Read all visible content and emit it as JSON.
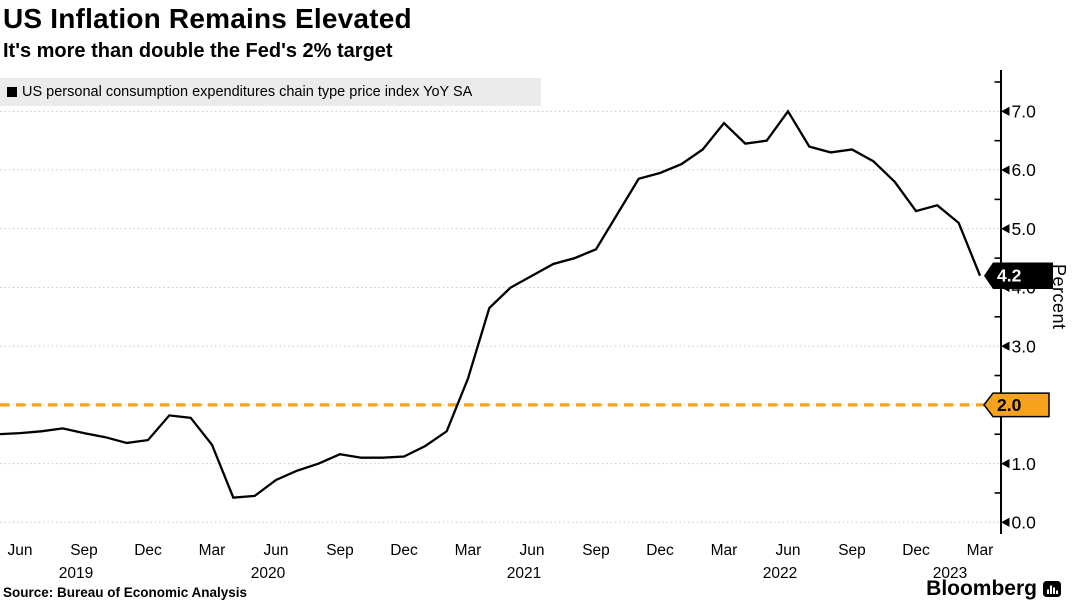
{
  "header": {
    "title": "US Inflation Remains Elevated",
    "subtitle": "It's more than double the Fed's 2% target"
  },
  "legend": {
    "marker": "black-square",
    "label": "US personal consumption expenditures chain type price index YoY SA"
  },
  "axis": {
    "y_label": "Percent",
    "y_tick_labels": [
      "0.0",
      "1.0",
      "2.0",
      "3.0",
      "4.0",
      "5.0",
      "6.0",
      "7.0"
    ]
  },
  "annotations": {
    "latest": {
      "label": "4.2",
      "value": 4.2,
      "bg_color": "#000000",
      "text_color": "#ffffff"
    },
    "target": {
      "label": "2.0",
      "value": 2.0,
      "bg_color": "#f7a21d",
      "text_color": "#000000"
    }
  },
  "footer": {
    "source": "Source: Bureau of Economic Analysis",
    "brand": "Bloomberg"
  },
  "colors": {
    "line": "#000000",
    "target_line": "#f7a21d",
    "grid": "#c9c9c9",
    "legend_bg": "#ebebeb"
  },
  "chart_data": {
    "type": "line",
    "title": "US Inflation Remains Elevated",
    "subtitle": "It's more than double the Fed's 2% target",
    "series": [
      {
        "name": "US personal consumption expenditures chain type price index YoY SA",
        "color": "#000000",
        "x": [
          "May 2019",
          "Jun 2019",
          "Jul 2019",
          "Aug 2019",
          "Sep 2019",
          "Oct 2019",
          "Nov 2019",
          "Dec 2019",
          "Jan 2020",
          "Feb 2020",
          "Mar 2020",
          "Apr 2020",
          "May 2020",
          "Jun 2020",
          "Jul 2020",
          "Aug 2020",
          "Sep 2020",
          "Oct 2020",
          "Nov 2020",
          "Dec 2020",
          "Jan 2021",
          "Feb 2021",
          "Mar 2021",
          "Apr 2021",
          "May 2021",
          "Jun 2021",
          "Jul 2021",
          "Aug 2021",
          "Sep 2021",
          "Oct 2021",
          "Nov 2021",
          "Dec 2021",
          "Jan 2022",
          "Feb 2022",
          "Mar 2022",
          "Apr 2022",
          "May 2022",
          "Jun 2022",
          "Jul 2022",
          "Aug 2022",
          "Sep 2022",
          "Oct 2022",
          "Nov 2022",
          "Dec 2022",
          "Jan 2023",
          "Feb 2023",
          "Mar 2023"
        ],
        "values": [
          1.5,
          1.52,
          1.55,
          1.6,
          1.52,
          1.45,
          1.35,
          1.4,
          1.82,
          1.78,
          1.32,
          0.42,
          0.45,
          0.72,
          0.88,
          1.0,
          1.16,
          1.1,
          1.1,
          1.12,
          1.3,
          1.55,
          2.45,
          3.65,
          4.0,
          4.2,
          4.4,
          4.5,
          4.65,
          5.25,
          5.85,
          5.95,
          6.1,
          6.35,
          6.8,
          6.45,
          6.5,
          7.0,
          6.4,
          6.3,
          6.35,
          6.15,
          5.8,
          5.3,
          5.4,
          5.1,
          4.2
        ]
      }
    ],
    "x_tick_labels": [
      "Jun",
      "Sep",
      "Dec",
      "Mar",
      "Jun",
      "Sep",
      "Dec",
      "Mar",
      "Jun",
      "Sep",
      "Dec",
      "Mar",
      "Jun",
      "Sep",
      "Dec",
      "Mar"
    ],
    "year_labels": [
      {
        "text": "2019",
        "tick": 1
      },
      {
        "text": "2020",
        "tick": 4
      },
      {
        "text": "2021",
        "tick": 8
      },
      {
        "text": "2022",
        "tick": 12
      },
      {
        "text": "2023",
        "tick": 15
      }
    ],
    "y_ticks": [
      0,
      1,
      2,
      3,
      4,
      5,
      6,
      7
    ],
    "y_minor_ticks": [
      0.5,
      1.5,
      2.5,
      3.5,
      4.5,
      5.5,
      6.5,
      7.5
    ],
    "ylim": [
      0,
      7.7
    ],
    "ylabel": "Percent",
    "grid": "horizontal-dotted",
    "legend_position": "top-left",
    "axis_side": "right",
    "target_line": {
      "value": 2.0,
      "label": "2.0",
      "color": "#f7a21d",
      "style": "dashed"
    },
    "latest_point": {
      "x": "Mar 2023",
      "value": 4.2,
      "label": "4.2"
    }
  }
}
